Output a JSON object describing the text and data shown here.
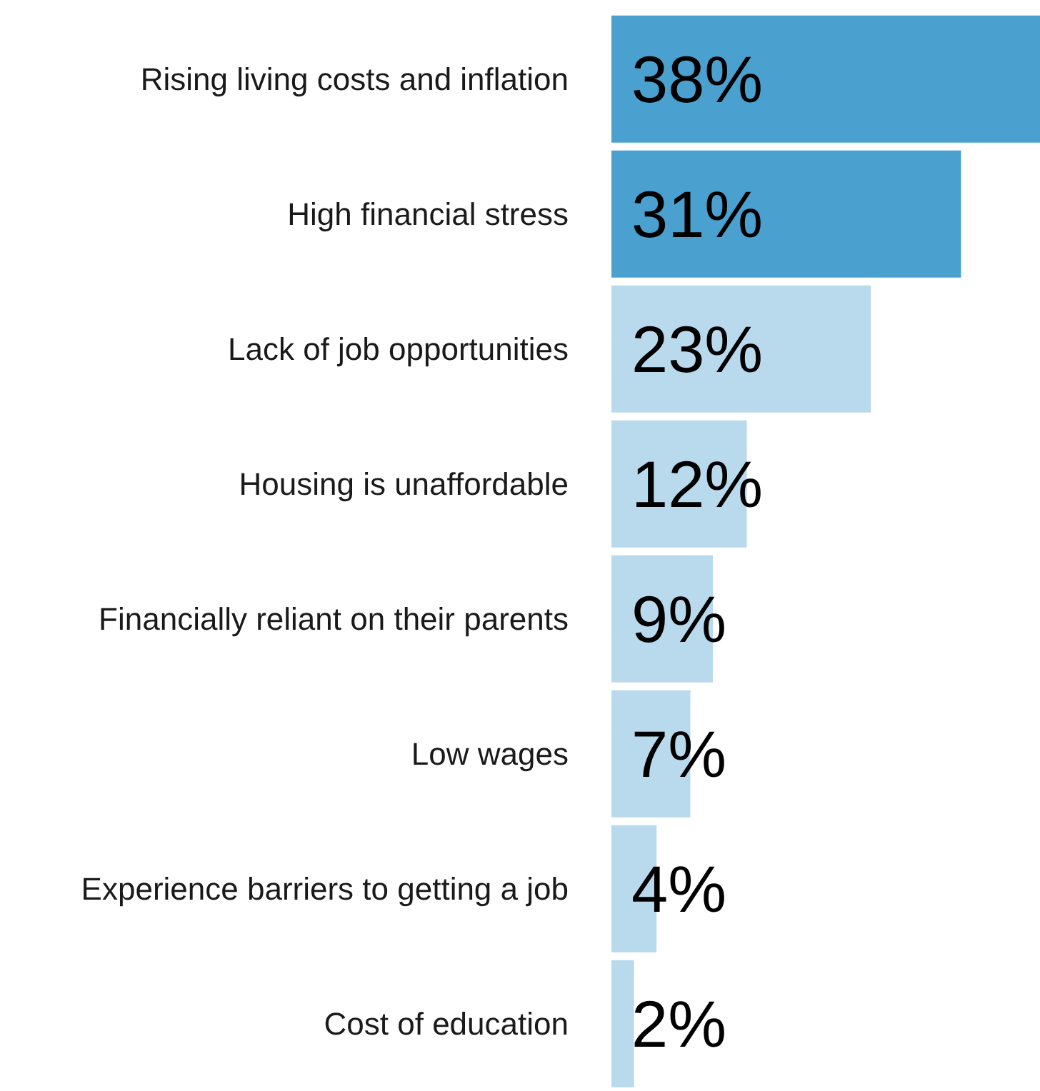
{
  "chart_data": {
    "type": "bar",
    "orientation": "horizontal",
    "categories": [
      "Rising living costs and inflation",
      "High financial stress",
      "Lack of job opportunities",
      "Housing is unaffordable",
      "Financially reliant on their parents",
      "Low wages",
      "Experience barriers to getting a job",
      "Cost of education"
    ],
    "values": [
      38,
      31,
      23,
      12,
      9,
      7,
      4,
      2
    ],
    "value_labels": [
      "38%",
      "31%",
      "23%",
      "12%",
      "9%",
      "7%",
      "4%",
      "2%"
    ],
    "colors": [
      "#4aa0cf",
      "#4aa0cf",
      "#b9d9ec",
      "#b9d9ec",
      "#b9d9ec",
      "#b9d9ec",
      "#b9d9ec",
      "#b9d9ec"
    ],
    "xlim": [
      0,
      38
    ],
    "tick_labels": "y"
  }
}
